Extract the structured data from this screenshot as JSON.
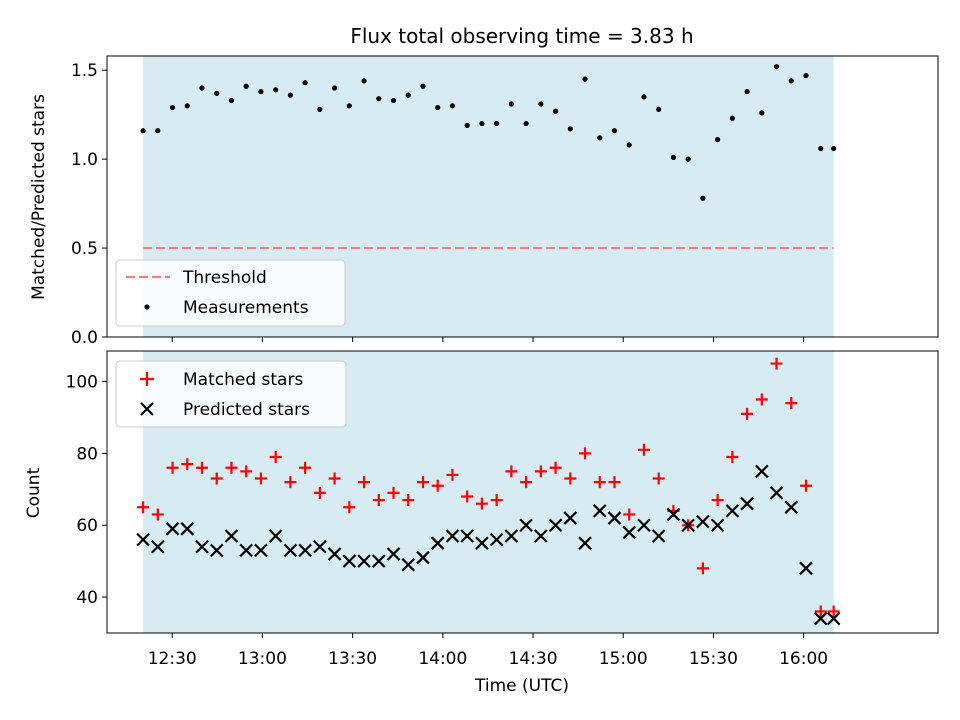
{
  "chart_data": {
    "title": "Flux total observing time = 3.83 h",
    "xlabel": "Time (UTC)",
    "x_ticks": [
      "12:30",
      "13:00",
      "13:30",
      "14:00",
      "14:30",
      "15:00",
      "15:30",
      "16:00"
    ],
    "x_tick_minutes": [
      750,
      780,
      810,
      840,
      870,
      900,
      930,
      960
    ],
    "x_range_minutes": [
      728.3,
      1004.7
    ],
    "shaded_interval_minutes": [
      740.3,
      970.0
    ],
    "times_minutes": [
      740.3,
      745.2,
      750.1,
      755.0,
      759.9,
      764.8,
      769.7,
      774.6,
      779.5,
      784.4,
      789.3,
      794.2,
      799.1,
      804.0,
      808.9,
      813.8,
      818.7,
      823.6,
      828.5,
      833.4,
      838.3,
      843.2,
      848.1,
      853.0,
      857.9,
      862.8,
      867.7,
      872.6,
      877.5,
      882.4,
      887.3,
      892.2,
      897.1,
      902.0,
      906.9,
      911.8,
      916.7,
      921.6,
      926.5,
      931.4,
      936.3,
      941.2,
      946.1,
      951.0,
      955.9,
      960.8,
      965.7,
      970.0
    ],
    "panels": [
      {
        "type": "scatter",
        "ylabel": "Matched/Predicted stars",
        "ylim": [
          0,
          1.58
        ],
        "yticks": [
          "0.0",
          "0.5",
          "1.0",
          "1.5"
        ],
        "ytick_values": [
          0,
          0.5,
          1.0,
          1.5
        ],
        "threshold": 0.5,
        "legend": {
          "location": "lower-left",
          "entries": [
            "Threshold",
            "Measurements"
          ]
        },
        "series": [
          {
            "name": "Measurements",
            "color": "#000000",
            "marker": "dot",
            "values": [
              1.16,
              1.16,
              1.29,
              1.3,
              1.4,
              1.37,
              1.33,
              1.41,
              1.38,
              1.39,
              1.36,
              1.43,
              1.28,
              1.4,
              1.3,
              1.44,
              1.34,
              1.33,
              1.36,
              1.41,
              1.29,
              1.3,
              1.19,
              1.2,
              1.2,
              1.31,
              1.2,
              1.31,
              1.27,
              1.17,
              1.45,
              1.12,
              1.16,
              1.08,
              1.35,
              1.28,
              1.01,
              1.0,
              0.78,
              1.11,
              1.23,
              1.38,
              1.26,
              1.52,
              1.44,
              1.47,
              1.06,
              1.06
            ]
          }
        ]
      },
      {
        "type": "scatter",
        "ylabel": "Count",
        "ylim": [
          30,
          108.5
        ],
        "yticks": [
          "40",
          "60",
          "80",
          "100"
        ],
        "ytick_values": [
          40,
          60,
          80,
          100
        ],
        "legend": {
          "location": "upper-left",
          "entries": [
            "Matched stars",
            "Predicted stars"
          ]
        },
        "series": [
          {
            "name": "Matched stars",
            "color": "#ff0000",
            "marker": "plus",
            "values": [
              65,
              63,
              76,
              77,
              76,
              73,
              76,
              75,
              73,
              79,
              72,
              76,
              69,
              73,
              65,
              72,
              67,
              69,
              67,
              72,
              71,
              74,
              68,
              66,
              67,
              75,
              72,
              75,
              76,
              73,
              80,
              72,
              72,
              63,
              81,
              73,
              64,
              60,
              48,
              67,
              79,
              91,
              95,
              105,
              94,
              71,
              36,
              36
            ]
          },
          {
            "name": "Predicted stars",
            "color": "#000000",
            "marker": "x",
            "values": [
              56,
              54,
              59,
              59,
              54,
              53,
              57,
              53,
              53,
              57,
              53,
              53,
              54,
              52,
              50,
              50,
              50,
              52,
              49,
              51,
              55,
              57,
              57,
              55,
              56,
              57,
              60,
              57,
              60,
              62,
              55,
              64,
              62,
              58,
              60,
              57,
              63,
              60,
              61,
              60,
              64,
              66,
              75,
              69,
              65,
              48,
              34,
              34
            ]
          }
        ]
      }
    ]
  }
}
